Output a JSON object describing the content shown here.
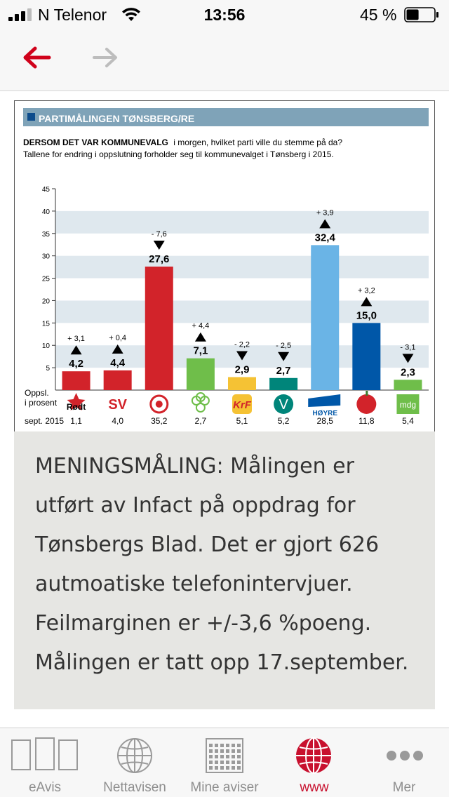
{
  "status_bar": {
    "carrier": "N Telenor",
    "time": "13:56",
    "battery_percent": "45 %",
    "battery_level": 0.45,
    "signal_bars": 3,
    "signal_bars_total": 4,
    "signal_icon": "cellular-signal-icon",
    "wifi_icon": "wifi-icon",
    "battery_icon": "battery-icon"
  },
  "nav": {
    "back_icon": "arrow-left-icon",
    "forward_icon": "arrow-right-icon",
    "back_color": "#d0021b",
    "forward_color": "#bdbdbd"
  },
  "article": {
    "graphic": {
      "header": "PARTIMÅLINGEN TØNSBERG/RE",
      "question_bold": "DERSOM DET VAR KOMMUNEVALG",
      "question_rest": "i morgen, hvilket parti ville du stemme på da?",
      "note": "Tallene for endring i oppslutning forholder seg til kommunevalget i Tønsberg i 2015.",
      "row_label_lines": [
        "Oppsl.",
        "i prosent",
        "sept. 2015"
      ],
      "header_color": "#7fa3b8",
      "band_color": "#dfe8ee"
    },
    "caption": "MENINGSMÅLING: Målingen er utført av Infact på oppdrag for Tønsbergs Blad. Det er gjort 626 autmoatiske telefonintervjuer. Feilmarginen er +/-3,6 %poeng. Målingen er tatt opp 17.september."
  },
  "chart_data": {
    "type": "bar",
    "categories": [
      "Rødt",
      "SV",
      "Ap",
      "Sp",
      "KrF",
      "Venstre",
      "Høyre",
      "FrP",
      "MDG"
    ],
    "values": [
      4.2,
      4.4,
      27.6,
      7.1,
      2.9,
      2.7,
      32.4,
      15.0,
      2.3
    ],
    "value_labels": [
      "4,2",
      "4,4",
      "27,6",
      "7,1",
      "2,9",
      "2,7",
      "32,4",
      "15,0",
      "2,3"
    ],
    "changes": [
      "+ 3,1",
      "+ 0,4",
      "- 7,6",
      "+ 4,4",
      "- 2,2",
      "- 2,5",
      "+ 3,9",
      "+ 3,2",
      "- 3,1"
    ],
    "direction": [
      "up",
      "up",
      "down",
      "up",
      "down",
      "down",
      "up",
      "up",
      "down"
    ],
    "previous_labels": [
      "1,1",
      "4,0",
      "35,2",
      "2,7",
      "5,1",
      "5,2",
      "28,5",
      "11,8",
      "5,4"
    ],
    "colors": [
      "#d2232a",
      "#d2232a",
      "#d2232a",
      "#6fbe4a",
      "#f5c234",
      "#00857a",
      "#6ab4e6",
      "#0057a8",
      "#6fbe4a"
    ],
    "logo_texts": [
      "Rødt",
      "SV",
      "",
      "",
      "KrF",
      "V",
      "HØYRE",
      "",
      "mdg"
    ],
    "y_ticks": [
      5,
      10,
      15,
      20,
      25,
      30,
      35,
      40,
      45
    ],
    "ylim": [
      0,
      45
    ],
    "grid": "alternating horizontal bands",
    "title": "PARTIMÅLINGEN TØNSBERG/RE"
  },
  "tab_bar": {
    "items": [
      {
        "label": "eAvis",
        "icon": "newspaper-pages-icon",
        "active": false
      },
      {
        "label": "Nettavisen",
        "icon": "globe-icon",
        "active": false
      },
      {
        "label": "Mine aviser",
        "icon": "grid-icon",
        "active": false
      },
      {
        "label": "www",
        "icon": "web-globe-icon",
        "active": true
      },
      {
        "label": "Mer",
        "icon": "more-dots-icon",
        "active": false
      }
    ],
    "active_color": "#c8102e",
    "inactive_color": "#8e8e8e"
  }
}
